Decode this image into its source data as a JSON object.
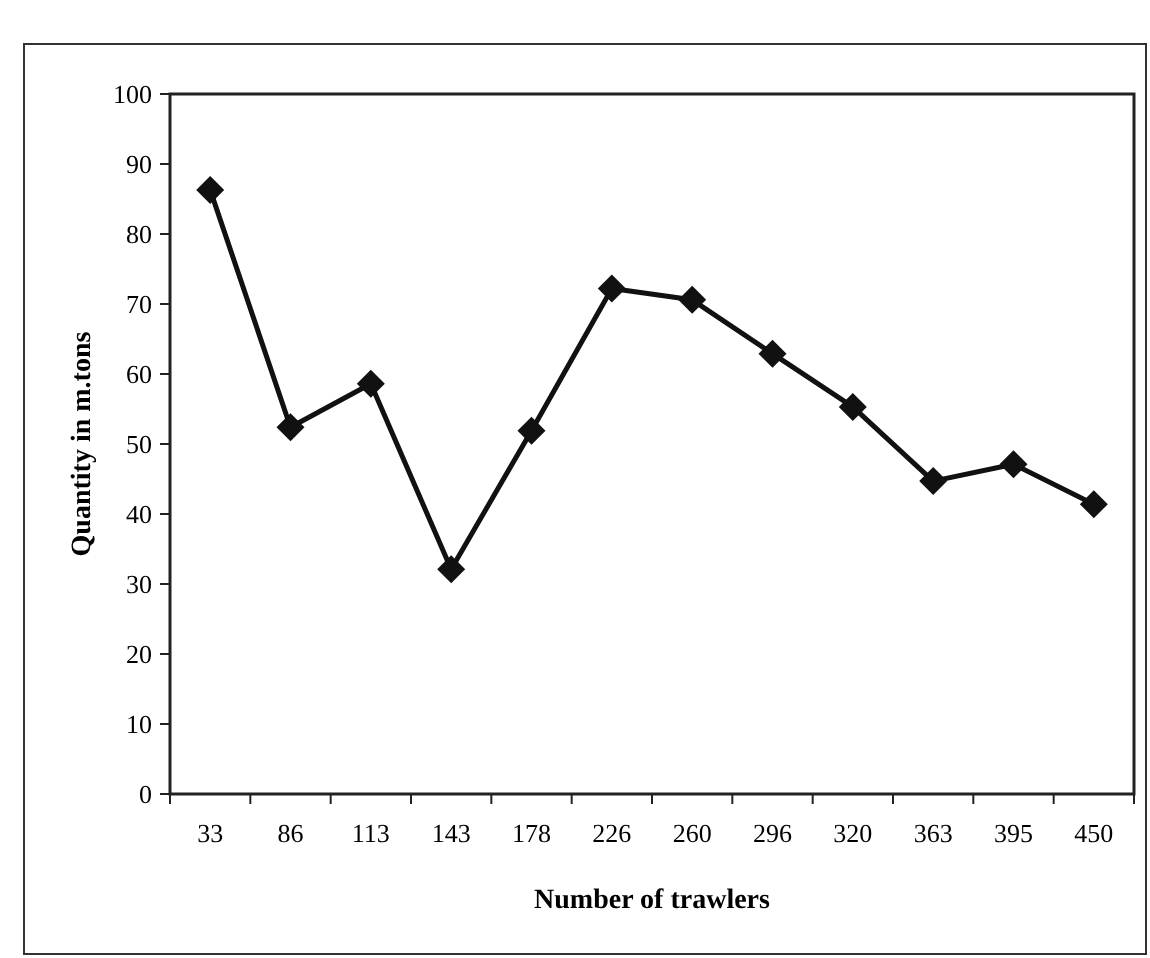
{
  "chart_data": {
    "type": "line",
    "xlabel": "Number of trawlers",
    "ylabel": "Quantity in m.tons",
    "categories": [
      "33",
      "86",
      "113",
      "143",
      "178",
      "226",
      "260",
      "296",
      "320",
      "363",
      "395",
      "450"
    ],
    "series": [
      {
        "color": "#111111",
        "values": [
          86.3,
          52.4,
          58.6,
          32.1,
          51.9,
          72.2,
          70.6,
          62.9,
          55.3,
          44.7,
          47.1,
          41.4
        ]
      }
    ],
    "ylim": [
      0,
      100
    ],
    "yticks": [
      0,
      10,
      20,
      30,
      40,
      50,
      60,
      70,
      80,
      90,
      100
    ],
    "grid": false,
    "marker": "diamond",
    "line_style": "solid"
  }
}
